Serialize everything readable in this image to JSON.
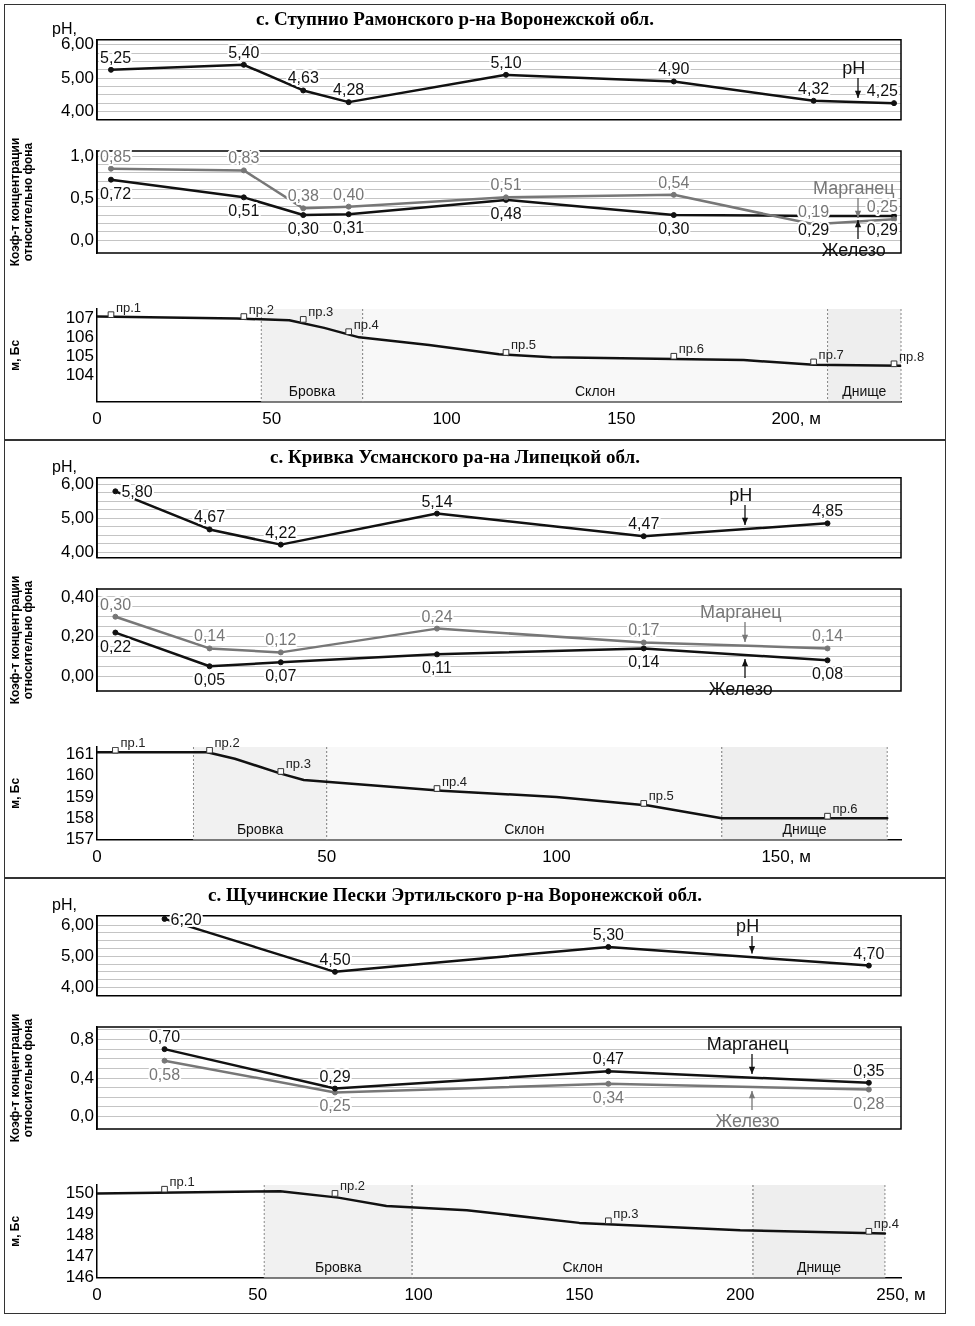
{
  "chart_data": [
    {
      "type": "line",
      "title": "с. Ступнио Рамонского р-на Воронежской обл.",
      "ylabel": "pH,",
      "x": [
        4,
        42,
        59,
        72,
        117,
        165,
        205,
        228
      ],
      "xlim": [
        0,
        230
      ],
      "ylim": [
        3.75,
        6.15
      ],
      "yticks": [
        {
          "value": 4,
          "label": "4,00"
        },
        {
          "value": 4.25,
          "label": null
        },
        {
          "value": 4.5,
          "label": null
        },
        {
          "value": 4.75,
          "label": null
        },
        {
          "value": 5,
          "label": "5,00"
        },
        {
          "value": 5.25,
          "label": null
        },
        {
          "value": 5.5,
          "label": null
        },
        {
          "value": 5.75,
          "label": null
        },
        {
          "value": 6,
          "label": "6,00"
        }
      ],
      "grid": "y",
      "marker": "circle",
      "tick_labels": "y",
      "series": [
        {
          "name": "pH",
          "color": "#111111",
          "values": [
            5.25,
            5.4,
            4.63,
            4.28,
            5.1,
            4.9,
            4.32,
            4.25
          ],
          "value_labels": [
            "5,25",
            "5,40",
            "4,63",
            "4,28",
            "5,10",
            "4,90",
            "4,32",
            "4,25"
          ]
        }
      ]
    },
    {
      "type": "line",
      "ylabel": "Коэф-т концентрации\nотносительно фона",
      "x": [
        4,
        42,
        59,
        72,
        117,
        165,
        205,
        228
      ],
      "xlim": [
        0,
        230
      ],
      "ylim": [
        -0.15,
        1.06
      ],
      "yticks": [
        {
          "value": 0,
          "label": "0,0"
        },
        {
          "value": 0.1,
          "label": null
        },
        {
          "value": 0.2,
          "label": null
        },
        {
          "value": 0.3,
          "label": null
        },
        {
          "value": 0.4,
          "label": null
        },
        {
          "value": 0.5,
          "label": "0,5"
        },
        {
          "value": 0.6,
          "label": null
        },
        {
          "value": 0.7,
          "label": null
        },
        {
          "value": 0.8,
          "label": null
        },
        {
          "value": 0.9,
          "label": null
        },
        {
          "value": 1,
          "label": "1,0"
        }
      ],
      "grid": "y",
      "marker": "circle",
      "tick_labels": "y",
      "series": [
        {
          "name": "Марганец",
          "color": "#777777",
          "values": [
            0.85,
            0.83,
            0.38,
            0.4,
            0.51,
            0.54,
            0.19,
            0.25
          ],
          "value_labels": [
            "0,85",
            "0,83",
            "0,38",
            "0,40",
            "0,51",
            "0,54",
            "0,19",
            "0,25"
          ]
        },
        {
          "name": "Железо",
          "color": "#111111",
          "values": [
            0.72,
            0.51,
            0.3,
            0.31,
            0.48,
            0.3,
            0.29,
            0.29
          ],
          "value_labels": [
            "0,72",
            "0,51",
            "0,30",
            "0,31",
            "0,48",
            "0,30",
            "0,29",
            "0,29"
          ]
        }
      ]
    },
    {
      "type": "line",
      "ylabel": "м, Бс",
      "xlim": [
        0,
        230
      ],
      "ylim": [
        102.6,
        107.5
      ],
      "xticks": [
        0,
        50,
        100,
        150,
        {
          "value": 200,
          "label": "200, м"
        }
      ],
      "yticks": [
        104,
        105,
        106,
        107
      ],
      "series": [
        {
          "color": "#111111",
          "marker": "none",
          "x": [
            0,
            40,
            55,
            65,
            75,
            95,
            115,
            130,
            165,
            185,
            205,
            230
          ],
          "values": [
            107.1,
            107.0,
            106.9,
            106.5,
            106.0,
            105.6,
            105.1,
            104.95,
            104.85,
            104.8,
            104.55,
            104.5
          ]
        },
        {
          "type": "scatter",
          "color": "#333333",
          "marker": "square",
          "x": [
            4,
            42,
            59,
            72,
            117,
            165,
            205,
            228
          ],
          "values": [
            107.2,
            107.1,
            106.95,
            106.3,
            105.2,
            105.0,
            104.7,
            104.6
          ]
        }
      ],
      "bands": [
        {
          "axis": "x",
          "from": 47,
          "to": 76,
          "label": "Бровка",
          "color": "#f1f1f1"
        },
        {
          "axis": "x",
          "from": 76,
          "to": 209,
          "label": "Склон",
          "color": "#f8f8f8"
        },
        {
          "axis": "x",
          "from": 209,
          "to": 230,
          "label": "Днище",
          "color": "#eeeeee"
        }
      ],
      "annotations": [
        {
          "text": "пр.1",
          "x": 4,
          "y": 107.2
        },
        {
          "text": "пр.2",
          "x": 42,
          "y": 107.1
        },
        {
          "text": "пр.3",
          "x": 59,
          "y": 106.95
        },
        {
          "text": "пр.4",
          "x": 72,
          "y": 106.3
        },
        {
          "text": "пр.5",
          "x": 117,
          "y": 105.2
        },
        {
          "text": "пр.6",
          "x": 165,
          "y": 105.0
        },
        {
          "text": "пр.7",
          "x": 205,
          "y": 104.7
        },
        {
          "text": "пр.8",
          "x": 228,
          "y": 104.6
        }
      ]
    },
    {
      "type": "line",
      "title": "с. Кривка Усманского ра-на Липецкой обл.",
      "ylabel": "pH,",
      "x": [
        4,
        24.5,
        40,
        74,
        119,
        159
      ],
      "xlim": [
        0,
        175
      ],
      "ylim": [
        3.83,
        6.2
      ],
      "yticks": [
        {
          "value": 4,
          "label": "4,00"
        },
        {
          "value": 4.25,
          "label": null
        },
        {
          "value": 4.5,
          "label": null
        },
        {
          "value": 4.75,
          "label": null
        },
        {
          "value": 5,
          "label": "5,00"
        },
        {
          "value": 5.25,
          "label": null
        },
        {
          "value": 5.5,
          "label": null
        },
        {
          "value": 5.75,
          "label": null
        },
        {
          "value": 6,
          "label": "6,00"
        }
      ],
      "grid": "y",
      "marker": "circle",
      "tick_labels": "y",
      "series": [
        {
          "name": "pH",
          "color": "#111111",
          "values": [
            5.8,
            4.67,
            4.22,
            5.14,
            4.47,
            4.85
          ],
          "value_labels": [
            "5,80",
            "4,67",
            "4,22",
            "5,14",
            "4,47",
            "4,85"
          ]
        }
      ]
    },
    {
      "type": "line",
      "ylabel": "Коэф-т концентрации\nотносительно фона",
      "x": [
        4,
        24.5,
        40,
        74,
        119,
        159
      ],
      "xlim": [
        0,
        175
      ],
      "ylim": [
        -0.075,
        0.44
      ],
      "yticks": [
        {
          "value": 0,
          "label": "0,00"
        },
        {
          "value": 0.05,
          "label": null
        },
        {
          "value": 0.1,
          "label": null
        },
        {
          "value": 0.15,
          "label": null
        },
        {
          "value": 0.2,
          "label": "0,20"
        },
        {
          "value": 0.25,
          "label": null
        },
        {
          "value": 0.3,
          "label": null
        },
        {
          "value": 0.35,
          "label": null
        },
        {
          "value": 0.4,
          "label": "0,40"
        }
      ],
      "grid": "y",
      "marker": "circle",
      "tick_labels": "y",
      "series": [
        {
          "name": "Марганец",
          "color": "#777777",
          "values": [
            0.3,
            0.14,
            0.12,
            0.24,
            0.17,
            0.14
          ],
          "value_labels": [
            "0,30",
            "0,14",
            "0,12",
            "0,24",
            "0,17",
            "0,14"
          ]
        },
        {
          "name": "Железо",
          "color": "#111111",
          "values": [
            0.22,
            0.05,
            0.07,
            0.11,
            0.14,
            0.08
          ],
          "value_labels": [
            "0,22",
            "0,05",
            "0,07",
            "0,11",
            "0,14",
            "0,08"
          ]
        }
      ]
    },
    {
      "type": "line",
      "ylabel": "м, Бс",
      "xlim": [
        0,
        175
      ],
      "ylim": [
        157,
        161.35
      ],
      "xticks": [
        0,
        50,
        100,
        {
          "value": 150,
          "label": "150, м"
        }
      ],
      "yticks": [
        157,
        158,
        159,
        160,
        161
      ],
      "series": [
        {
          "color": "#111111",
          "marker": "none",
          "x": [
            0,
            24,
            30,
            40,
            45,
            75,
            100,
            120,
            136,
            172
          ],
          "values": [
            161.1,
            161.1,
            160.8,
            160.1,
            159.8,
            159.3,
            159.0,
            158.6,
            158.0,
            158.0
          ]
        },
        {
          "type": "scatter",
          "color": "#333333",
          "marker": "square",
          "x": [
            4,
            24.5,
            40,
            74,
            119,
            159
          ],
          "values": [
            161.2,
            161.2,
            160.2,
            159.4,
            158.7,
            158.1
          ]
        }
      ],
      "bands": [
        {
          "axis": "x",
          "from": 21,
          "to": 50,
          "label": "Бровка",
          "color": "#f1f1f1"
        },
        {
          "axis": "x",
          "from": 50,
          "to": 136,
          "label": "Склон",
          "color": "#f8f8f8"
        },
        {
          "axis": "x",
          "from": 136,
          "to": 172,
          "label": "Днище",
          "color": "#eeeeee"
        }
      ],
      "annotations": [
        {
          "text": "пр.1",
          "x": 4,
          "y": 161.2
        },
        {
          "text": "пр.2",
          "x": 24.5,
          "y": 161.2
        },
        {
          "text": "пр.3",
          "x": 40,
          "y": 160.2
        },
        {
          "text": "пр.4",
          "x": 74,
          "y": 159.4
        },
        {
          "text": "пр.5",
          "x": 119,
          "y": 158.7
        },
        {
          "text": "пр.6",
          "x": 159,
          "y": 158.1
        }
      ]
    },
    {
      "type": "line",
      "title": "с. Щучинские Пески Эртильского р-на Воронежской обл.",
      "ylabel": "pH,",
      "x": [
        21,
        74,
        159,
        240
      ],
      "xlim": [
        0,
        250
      ],
      "ylim": [
        3.73,
        6.3
      ],
      "yticks": [
        {
          "value": 4,
          "label": "4,00"
        },
        {
          "value": 4.25,
          "label": null
        },
        {
          "value": 4.5,
          "label": null
        },
        {
          "value": 4.75,
          "label": null
        },
        {
          "value": 5,
          "label": "5,00"
        },
        {
          "value": 5.25,
          "label": null
        },
        {
          "value": 5.5,
          "label": null
        },
        {
          "value": 5.75,
          "label": null
        },
        {
          "value": 6,
          "label": "6,00"
        }
      ],
      "grid": "y",
      "marker": "circle",
      "tick_labels": "y",
      "series": [
        {
          "name": "pH",
          "color": "#111111",
          "values": [
            6.2,
            4.5,
            5.3,
            4.7
          ],
          "value_labels": [
            "6,20",
            "4,50",
            "5,30",
            "4,70"
          ]
        }
      ]
    },
    {
      "type": "line",
      "ylabel": "Коэф-т концентрации\nотносительно фона",
      "x": [
        21,
        74,
        159,
        240
      ],
      "xlim": [
        0,
        250
      ],
      "ylim": [
        -0.13,
        0.93
      ],
      "yticks": [
        {
          "value": 0,
          "label": "0,0"
        },
        {
          "value": 0.1,
          "label": null
        },
        {
          "value": 0.2,
          "label": null
        },
        {
          "value": 0.3,
          "label": null
        },
        {
          "value": 0.4,
          "label": "0,4"
        },
        {
          "value": 0.5,
          "label": null
        },
        {
          "value": 0.6,
          "label": null
        },
        {
          "value": 0.7,
          "label": null
        },
        {
          "value": 0.8,
          "label": "0,8"
        },
        {
          "value": 0.9,
          "label": null
        }
      ],
      "grid": "y",
      "marker": "circle",
      "tick_labels": "y",
      "series": [
        {
          "name": "Марганец",
          "color": "#111111",
          "values": [
            0.7,
            0.29,
            0.47,
            0.35
          ],
          "value_labels": [
            "0,70",
            "0,29",
            "0,47",
            "0,35"
          ]
        },
        {
          "name": "Железо",
          "color": "#777777",
          "values": [
            0.58,
            0.25,
            0.34,
            0.28
          ],
          "value_labels": [
            "0,58",
            "0,25",
            "0,34",
            "0,28"
          ]
        }
      ]
    },
    {
      "type": "line",
      "ylabel": "м, Бс",
      "xlim": [
        0,
        250
      ],
      "ylim": [
        146,
        150.4
      ],
      "xticks": [
        0,
        50,
        100,
        150,
        200,
        {
          "value": 250,
          "label": "250, м"
        }
      ],
      "yticks": [
        146,
        147,
        148,
        149,
        150
      ],
      "series": [
        {
          "color": "#111111",
          "marker": "none",
          "x": [
            0,
            57,
            75,
            90,
            115,
            150,
            200,
            245
          ],
          "values": [
            150.0,
            150.1,
            149.8,
            149.4,
            149.2,
            148.6,
            148.25,
            148.1
          ]
        },
        {
          "type": "scatter",
          "color": "#333333",
          "marker": "square",
          "x": [
            21,
            74,
            159,
            240
          ],
          "values": [
            150.2,
            150.0,
            148.7,
            148.2
          ]
        }
      ],
      "bands": [
        {
          "axis": "x",
          "from": 52,
          "to": 98,
          "label": "Бровка",
          "color": "#f1f1f1"
        },
        {
          "axis": "x",
          "from": 98,
          "to": 204,
          "label": "Склон",
          "color": "#f8f8f8"
        },
        {
          "axis": "x",
          "from": 204,
          "to": 245,
          "label": "Днище",
          "color": "#eeeeee"
        }
      ],
      "annotations": [
        {
          "text": "пр.1",
          "x": 21,
          "y": 150.2
        },
        {
          "text": "пр.2",
          "x": 74,
          "y": 150.0
        },
        {
          "text": "пр.3",
          "x": 159,
          "y": 148.7
        },
        {
          "text": "пр.4",
          "x": 240,
          "y": 148.2
        }
      ]
    }
  ]
}
